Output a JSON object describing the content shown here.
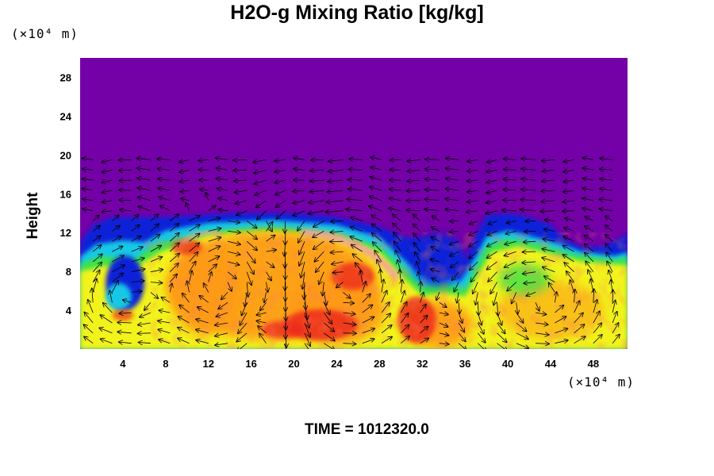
{
  "title": "H2O-g Mixing Ratio [kg/kg]",
  "time_label": "TIME = 1012320.0",
  "chart_data": {
    "type": "heatmap",
    "title": "H2O-g Mixing Ratio [kg/kg]",
    "xlabel": "",
    "ylabel": "Height",
    "x_unit": "(×10⁴ m)",
    "y_unit": "(×10⁴ m)",
    "x_ticks": [
      4,
      8,
      12,
      16,
      20,
      24,
      28,
      32,
      36,
      40,
      44,
      48
    ],
    "y_ticks": [
      4,
      8,
      12,
      16,
      20,
      24,
      28
    ],
    "xlim": [
      0,
      51.2
    ],
    "ylim": [
      0,
      30
    ],
    "grid": false,
    "overlay": "wind vector arrows",
    "colors": {
      "background_top": "#7400a8",
      "dry_blue": "#0a22d8",
      "cyan": "#16c8e6",
      "green": "#3ee24a",
      "yellow": "#f2f21a",
      "orange": "#ff9a18",
      "red": "#ec2a1e",
      "pink": "#f0a0a4"
    },
    "regions": [
      {
        "name": "dry-upper-layer",
        "x": [
          0,
          51.2
        ],
        "y": [
          13,
          30
        ],
        "level": "lowest"
      },
      {
        "name": "moist-cell-left",
        "x": [
          7,
          30
        ],
        "y": [
          0,
          12.5
        ],
        "level": "high"
      },
      {
        "name": "moist-cell-right",
        "x": [
          36,
          51.2
        ],
        "y": [
          0,
          12
        ],
        "level": "medium-high"
      },
      {
        "name": "cloud-top-ring",
        "x": [
          9,
          31
        ],
        "y": [
          7,
          12
        ],
        "level": "highest"
      },
      {
        "name": "dry-intrusion",
        "x": [
          30,
          37
        ],
        "y": [
          6,
          12
        ],
        "level": "low"
      }
    ]
  }
}
